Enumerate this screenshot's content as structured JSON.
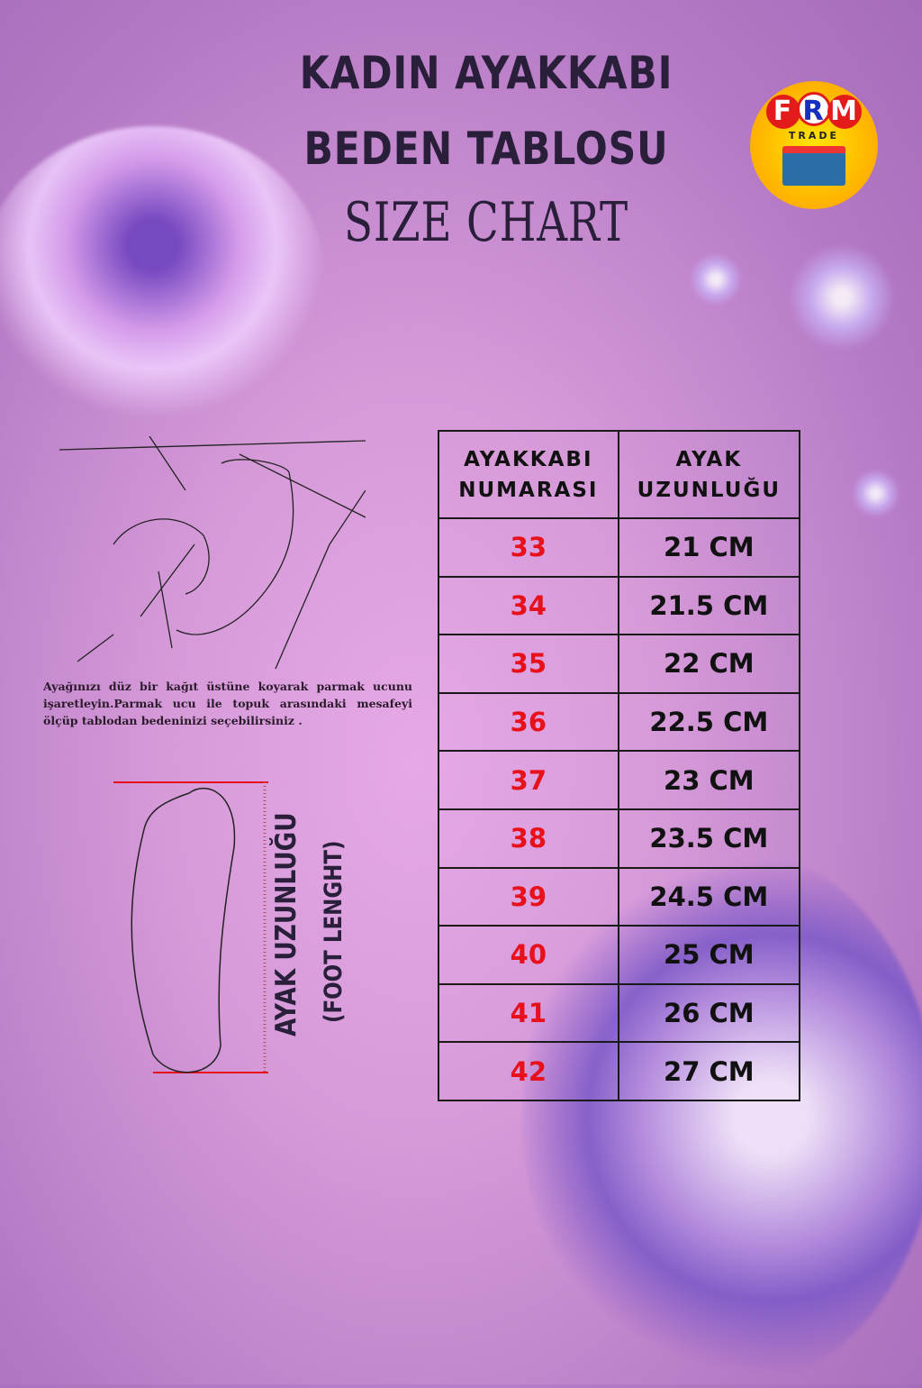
{
  "title": {
    "line1": "KADIN AYAKKABI",
    "line2": "BEDEN TABLOSU",
    "line3": "SIZE CHART"
  },
  "logo": {
    "letters": [
      "F",
      "R",
      "M"
    ],
    "sub": "TRADE"
  },
  "table": {
    "headers": [
      "AYAKKABI NUMARASI",
      "AYAK UZUNLUĞU"
    ],
    "rows": [
      {
        "size": "33",
        "length": "21 CM"
      },
      {
        "size": "34",
        "length": "21.5 CM"
      },
      {
        "size": "35",
        "length": "22 CM"
      },
      {
        "size": "36",
        "length": "22.5 CM"
      },
      {
        "size": "37",
        "length": "23 CM"
      },
      {
        "size": "38",
        "length": "23.5 CM"
      },
      {
        "size": "39",
        "length": "24.5 CM"
      },
      {
        "size": "40",
        "length": "25 CM"
      },
      {
        "size": "41",
        "length": "26 CM"
      },
      {
        "size": "42",
        "length": "27 CM"
      }
    ]
  },
  "instructions": "Ayağınızı düz bir kağıt üstüne koyarak parmak ucunu işaretleyin.Parmak ucu ile topuk arasındaki mesafeyi ölçüp tablodan bedeninizi seçebilirsiniz .",
  "foot_label": {
    "tr": "AYAK UZUNLUĞU",
    "en": "(FOOT LENGHT)"
  },
  "colors": {
    "background": "#d69ad9",
    "size_number": "#e8101a",
    "text": "#2a1f3a"
  }
}
